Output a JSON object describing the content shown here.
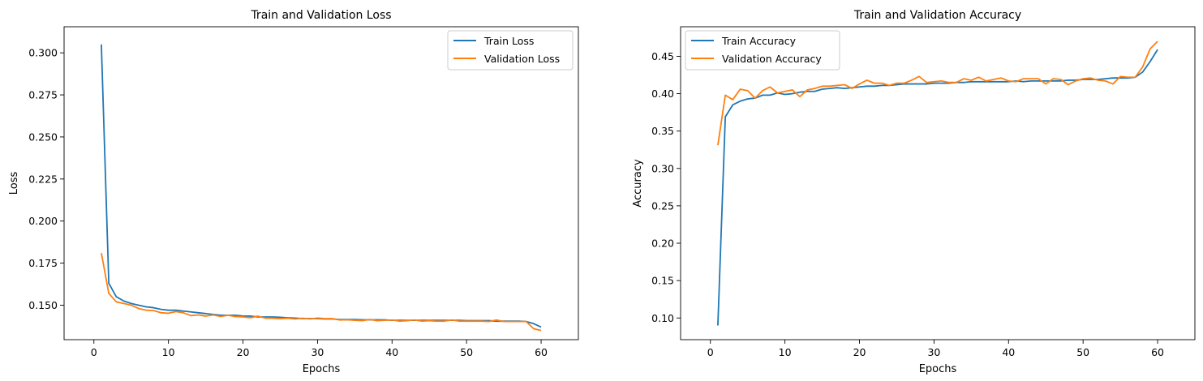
{
  "chart_data": [
    {
      "type": "line",
      "title": "Train and Validation Loss",
      "xlabel": "Epochs",
      "ylabel": "Loss",
      "xlim": [
        -4,
        65
      ],
      "ylim": [
        0.1295,
        0.3155
      ],
      "xticks": [
        0,
        10,
        20,
        30,
        40,
        50,
        60
      ],
      "xtick_labels": [
        "0",
        "10",
        "20",
        "30",
        "40",
        "50",
        "60"
      ],
      "yticks": [
        0.15,
        0.175,
        0.2,
        0.225,
        0.25,
        0.275,
        0.3
      ],
      "ytick_labels": [
        "0.150",
        "0.175",
        "0.200",
        "0.225",
        "0.250",
        "0.275",
        "0.300"
      ],
      "grid": false,
      "legend_position": "top-right",
      "x": [
        1,
        2,
        3,
        4,
        5,
        6,
        7,
        8,
        9,
        10,
        11,
        12,
        13,
        14,
        15,
        16,
        17,
        18,
        19,
        20,
        21,
        22,
        23,
        24,
        25,
        26,
        27,
        28,
        29,
        30,
        31,
        32,
        33,
        34,
        35,
        36,
        37,
        38,
        39,
        40,
        41,
        42,
        43,
        44,
        45,
        46,
        47,
        48,
        49,
        50,
        51,
        52,
        53,
        54,
        55,
        56,
        57,
        58,
        59,
        60
      ],
      "series": [
        {
          "name": "Train Loss",
          "color": "#1f77b4",
          "values": [
            0.305,
            0.163,
            0.155,
            0.1525,
            0.151,
            0.15,
            0.149,
            0.1485,
            0.1475,
            0.147,
            0.147,
            0.1465,
            0.146,
            0.1455,
            0.145,
            0.1445,
            0.144,
            0.144,
            0.144,
            0.1435,
            0.1435,
            0.143,
            0.143,
            0.143,
            0.1428,
            0.1425,
            0.1423,
            0.142,
            0.142,
            0.142,
            0.1418,
            0.1418,
            0.1415,
            0.1415,
            0.1415,
            0.1413,
            0.1413,
            0.1413,
            0.1413,
            0.141,
            0.141,
            0.141,
            0.141,
            0.141,
            0.141,
            0.141,
            0.141,
            0.141,
            0.141,
            0.1408,
            0.1408,
            0.1408,
            0.1408,
            0.1405,
            0.1405,
            0.1405,
            0.1405,
            0.1403,
            0.139,
            0.137
          ]
        },
        {
          "name": "Validation Loss",
          "color": "#ff7f0e",
          "values": [
            0.181,
            0.157,
            0.152,
            0.151,
            0.15,
            0.148,
            0.147,
            0.1468,
            0.1455,
            0.1452,
            0.1462,
            0.1455,
            0.1438,
            0.1442,
            0.1435,
            0.1442,
            0.1433,
            0.144,
            0.1432,
            0.143,
            0.1425,
            0.1435,
            0.1423,
            0.1422,
            0.142,
            0.1422,
            0.1418,
            0.1422,
            0.1418,
            0.1423,
            0.142,
            0.142,
            0.1412,
            0.1413,
            0.141,
            0.1408,
            0.1415,
            0.1408,
            0.141,
            0.1412,
            0.1405,
            0.1408,
            0.1412,
            0.1405,
            0.1408,
            0.1405,
            0.1405,
            0.1412,
            0.1405,
            0.1405,
            0.1405,
            0.1405,
            0.1403,
            0.1412,
            0.1403,
            0.1403,
            0.1403,
            0.1403,
            0.136,
            0.135
          ]
        }
      ]
    },
    {
      "type": "line",
      "title": "Train and Validation Accuracy",
      "xlabel": "Epochs",
      "ylabel": "Accuracy",
      "xlim": [
        -4,
        65
      ],
      "ylim": [
        0.071,
        0.4895
      ],
      "xticks": [
        0,
        10,
        20,
        30,
        40,
        50,
        60
      ],
      "xtick_labels": [
        "0",
        "10",
        "20",
        "30",
        "40",
        "50",
        "60"
      ],
      "yticks": [
        0.1,
        0.15,
        0.2,
        0.25,
        0.3,
        0.35,
        0.4,
        0.45
      ],
      "ytick_labels": [
        "0.10",
        "0.15",
        "0.20",
        "0.25",
        "0.30",
        "0.35",
        "0.40",
        "0.45"
      ],
      "grid": false,
      "legend_position": "top-left",
      "x": [
        1,
        2,
        3,
        4,
        5,
        6,
        7,
        8,
        9,
        10,
        11,
        12,
        13,
        14,
        15,
        16,
        17,
        18,
        19,
        20,
        21,
        22,
        23,
        24,
        25,
        26,
        27,
        28,
        29,
        30,
        31,
        32,
        33,
        34,
        35,
        36,
        37,
        38,
        39,
        40,
        41,
        42,
        43,
        44,
        45,
        46,
        47,
        48,
        49,
        50,
        51,
        52,
        53,
        54,
        55,
        56,
        57,
        58,
        59,
        60
      ],
      "series": [
        {
          "name": "Train Accuracy",
          "color": "#1f77b4",
          "values": [
            0.09,
            0.369,
            0.385,
            0.39,
            0.393,
            0.394,
            0.398,
            0.398,
            0.401,
            0.399,
            0.4,
            0.402,
            0.403,
            0.403,
            0.406,
            0.407,
            0.408,
            0.407,
            0.408,
            0.409,
            0.41,
            0.41,
            0.411,
            0.411,
            0.412,
            0.413,
            0.413,
            0.413,
            0.413,
            0.414,
            0.414,
            0.414,
            0.415,
            0.415,
            0.416,
            0.416,
            0.416,
            0.416,
            0.416,
            0.416,
            0.417,
            0.416,
            0.417,
            0.417,
            0.417,
            0.417,
            0.417,
            0.418,
            0.418,
            0.419,
            0.419,
            0.419,
            0.42,
            0.421,
            0.421,
            0.421,
            0.422,
            0.429,
            0.443,
            0.459
          ]
        },
        {
          "name": "Validation Accuracy",
          "color": "#ff7f0e",
          "values": [
            0.331,
            0.398,
            0.392,
            0.406,
            0.404,
            0.394,
            0.404,
            0.409,
            0.401,
            0.403,
            0.405,
            0.396,
            0.405,
            0.407,
            0.41,
            0.41,
            0.411,
            0.412,
            0.407,
            0.413,
            0.418,
            0.414,
            0.414,
            0.411,
            0.414,
            0.414,
            0.418,
            0.423,
            0.415,
            0.416,
            0.417,
            0.415,
            0.415,
            0.42,
            0.418,
            0.422,
            0.417,
            0.419,
            0.421,
            0.417,
            0.416,
            0.42,
            0.42,
            0.42,
            0.413,
            0.42,
            0.419,
            0.412,
            0.417,
            0.42,
            0.421,
            0.418,
            0.417,
            0.413,
            0.423,
            0.422,
            0.422,
            0.436,
            0.46,
            0.47
          ]
        }
      ]
    }
  ]
}
